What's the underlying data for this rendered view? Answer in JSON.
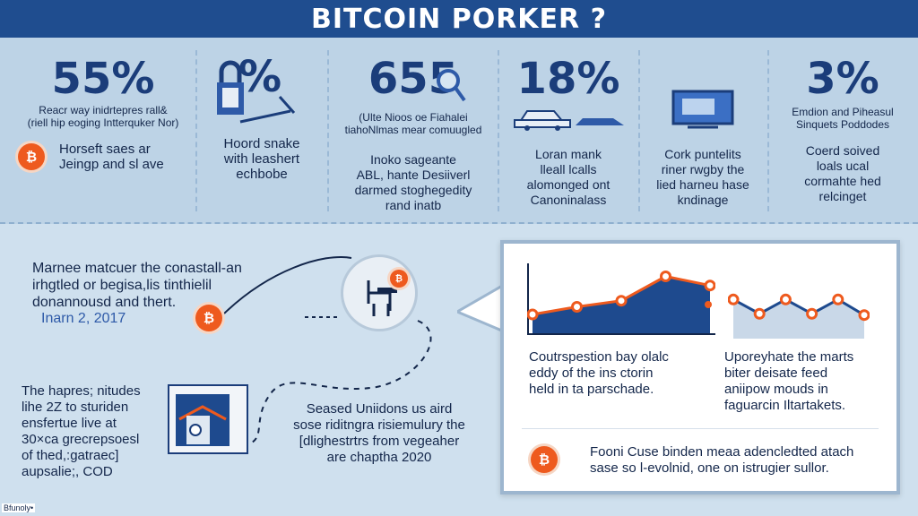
{
  "header": {
    "title": "BITCOIN PORKER ?"
  },
  "stats": [
    {
      "value": "55%",
      "caption": "Reacr way inidrtepres rall&\n(riell hip eoging Intterquker Nor)",
      "body": "Horseft saes ar\nJeingp and sl ave"
    },
    {
      "value": "%",
      "caption": "",
      "body": "Hoord snake\nwith leashert\nechbobe"
    },
    {
      "value": "655",
      "caption": "(Ulte Nioos oe Fiahalei\ntiahoNlmas mear comuugled",
      "body": "Inoko sageante\nABL, hante Desiiverl\ndarmed stoghegedity\nrand inatb"
    },
    {
      "value": "18%",
      "caption": "",
      "body": "Loran mank\nlleall lcalls\nalomonged ont\nCanoninalass"
    },
    {
      "value": "",
      "caption": "",
      "body": "Cork puntelits\nriner rwgby the\nlied harneu hase\nkndinage"
    },
    {
      "value": "3%",
      "caption": "Emdion and Piheasul\nSinquets Poddodes",
      "body": "Coerd soived\nloals ucal\ncormahte hed\nrelcinget"
    }
  ],
  "story": {
    "block1": "Marnee matcuer the conastall-an\nirhgtled or begisa,lis tinthielil\ndonannousd and thert.",
    "date1": "Inarn 2, 2017",
    "block2": "The hapres; nitudes\nlihe 2Z to sturiden\nensfertue live at\n30×ca grecrepsoesl\nof thed,:gatraec]\naupsalie;, COD",
    "block3": "Seased Uniidons us aird\nsose riditngra risiemulury the\n[dlighestrtrs from vegeaher\nare chaptha 2020"
  },
  "panel": {
    "left_text": "Coutrspestion bay olalc\neddy of the ins ctorin\nheld in ta parschade.",
    "right_text": "Uporeyhate the marts\nbiter deisate feed\naniipow mouds in\nfaguarcin Iltartakets.",
    "bottom_text": "Fooni Cuse binden meaa adencledted atach\nsase so l-evolnid, one on istrugier sullor."
  },
  "chart_data": [
    {
      "type": "area",
      "x": [
        1,
        2,
        3,
        4,
        5
      ],
      "series": [
        {
          "values": [
            20,
            30,
            38,
            70,
            58
          ]
        }
      ],
      "ylim": [
        0,
        80
      ],
      "title": "",
      "xlabel": "",
      "ylabel": ""
    },
    {
      "type": "area",
      "x": [
        1,
        2,
        3,
        4,
        5,
        6
      ],
      "series": [
        {
          "values": [
            52,
            30,
            52,
            30,
            52,
            28
          ]
        }
      ],
      "ylim": [
        0,
        80
      ],
      "title": "",
      "xlabel": "",
      "ylabel": ""
    }
  ],
  "footer": {
    "tag": "Bfunoly•"
  },
  "colors": {
    "accent": "#ee5a1e",
    "navy": "#1f4d8f",
    "chart_fill": "#1e4a8e"
  },
  "icons": [
    "bitcoin-coin-icon",
    "lock-icon",
    "magnifier-icon",
    "car-icon",
    "screen-icon",
    "safe-icon",
    "chair-icon"
  ]
}
